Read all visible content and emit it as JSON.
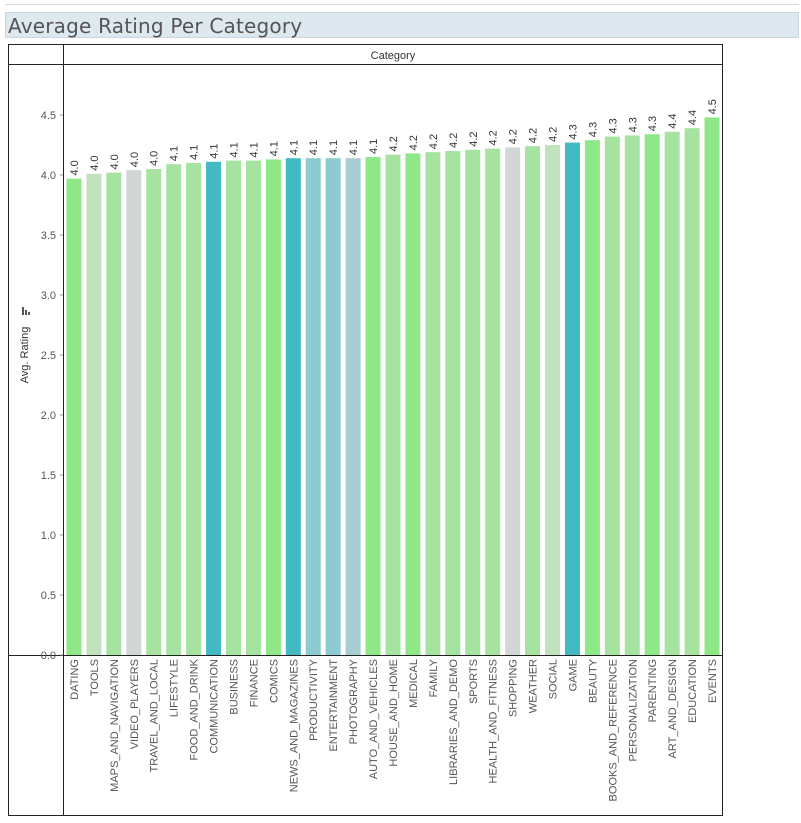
{
  "page": {
    "title": "Average Rating Per Category"
  },
  "colors": {
    "green": "#8ee887",
    "light_green": "#a6e3a0",
    "pale_green": "#c2e2bf",
    "gray": "#d3d6d6",
    "teal": "#42b9c3",
    "light_teal": "#8ccbd1",
    "gray_teal": "#a8ccd2"
  },
  "chart_data": {
    "type": "bar",
    "title": "Average Rating Per Category",
    "header": "Category",
    "xlabel": "Category",
    "ylabel": "Avg. Rating",
    "ylim": [
      0,
      4.8
    ],
    "yticks": [
      "0.0",
      "0.5",
      "1.0",
      "1.5",
      "2.0",
      "2.5",
      "3.0",
      "3.5",
      "4.0",
      "4.5"
    ],
    "ytick_values": [
      0,
      0.5,
      1.0,
      1.5,
      2.0,
      2.5,
      3.0,
      3.5,
      4.0,
      4.5
    ],
    "grid": false,
    "categories": [
      "DATING",
      "TOOLS",
      "MAPS_AND_NAVIGATION",
      "VIDEO_PLAYERS",
      "TRAVEL_AND_LOCAL",
      "LIFESTYLE",
      "FOOD_AND_DRINK",
      "COMMUNICATION",
      "BUSINESS",
      "FINANCE",
      "COMICS",
      "NEWS_AND_MAGAZINES",
      "PRODUCTIVITY",
      "ENTERTAINMENT",
      "PHOTOGRAPHY",
      "AUTO_AND_VEHICLES",
      "HOUSE_AND_HOME",
      "MEDICAL",
      "FAMILY",
      "LIBRARIES_AND_DEMO",
      "SPORTS",
      "HEALTH_AND_FITNESS",
      "SHOPPING",
      "WEATHER",
      "SOCIAL",
      "GAME",
      "BEAUTY",
      "BOOKS_AND_REFERENCE",
      "PERSONALIZATION",
      "PARENTING",
      "ART_AND_DESIGN",
      "EDUCATION",
      "EVENTS"
    ],
    "values": [
      3.97,
      4.01,
      4.02,
      4.04,
      4.05,
      4.09,
      4.1,
      4.11,
      4.12,
      4.12,
      4.13,
      4.14,
      4.14,
      4.14,
      4.14,
      4.15,
      4.17,
      4.18,
      4.19,
      4.2,
      4.21,
      4.22,
      4.23,
      4.24,
      4.25,
      4.27,
      4.29,
      4.32,
      4.33,
      4.34,
      4.36,
      4.39,
      4.48
    ],
    "labels": [
      "4.0",
      "4.0",
      "4.0",
      "4.0",
      "4.0",
      "4.1",
      "4.1",
      "4.1",
      "4.1",
      "4.1",
      "4.1",
      "4.1",
      "4.1",
      "4.1",
      "4.1",
      "4.1",
      "4.2",
      "4.2",
      "4.2",
      "4.2",
      "4.2",
      "4.2",
      "4.2",
      "4.2",
      "4.2",
      "4.3",
      "4.3",
      "4.3",
      "4.3",
      "4.3",
      "4.4",
      "4.4",
      "4.5"
    ],
    "bar_colors": [
      "green",
      "pale_green",
      "light_green",
      "gray",
      "light_green",
      "light_green",
      "light_green",
      "teal",
      "light_green",
      "light_green",
      "green",
      "teal",
      "light_teal",
      "light_teal",
      "gray_teal",
      "green",
      "light_green",
      "green",
      "light_green",
      "light_green",
      "light_green",
      "light_green",
      "gray",
      "light_green",
      "pale_green",
      "teal",
      "green",
      "light_green",
      "light_green",
      "green",
      "light_green",
      "light_green",
      "green"
    ]
  }
}
